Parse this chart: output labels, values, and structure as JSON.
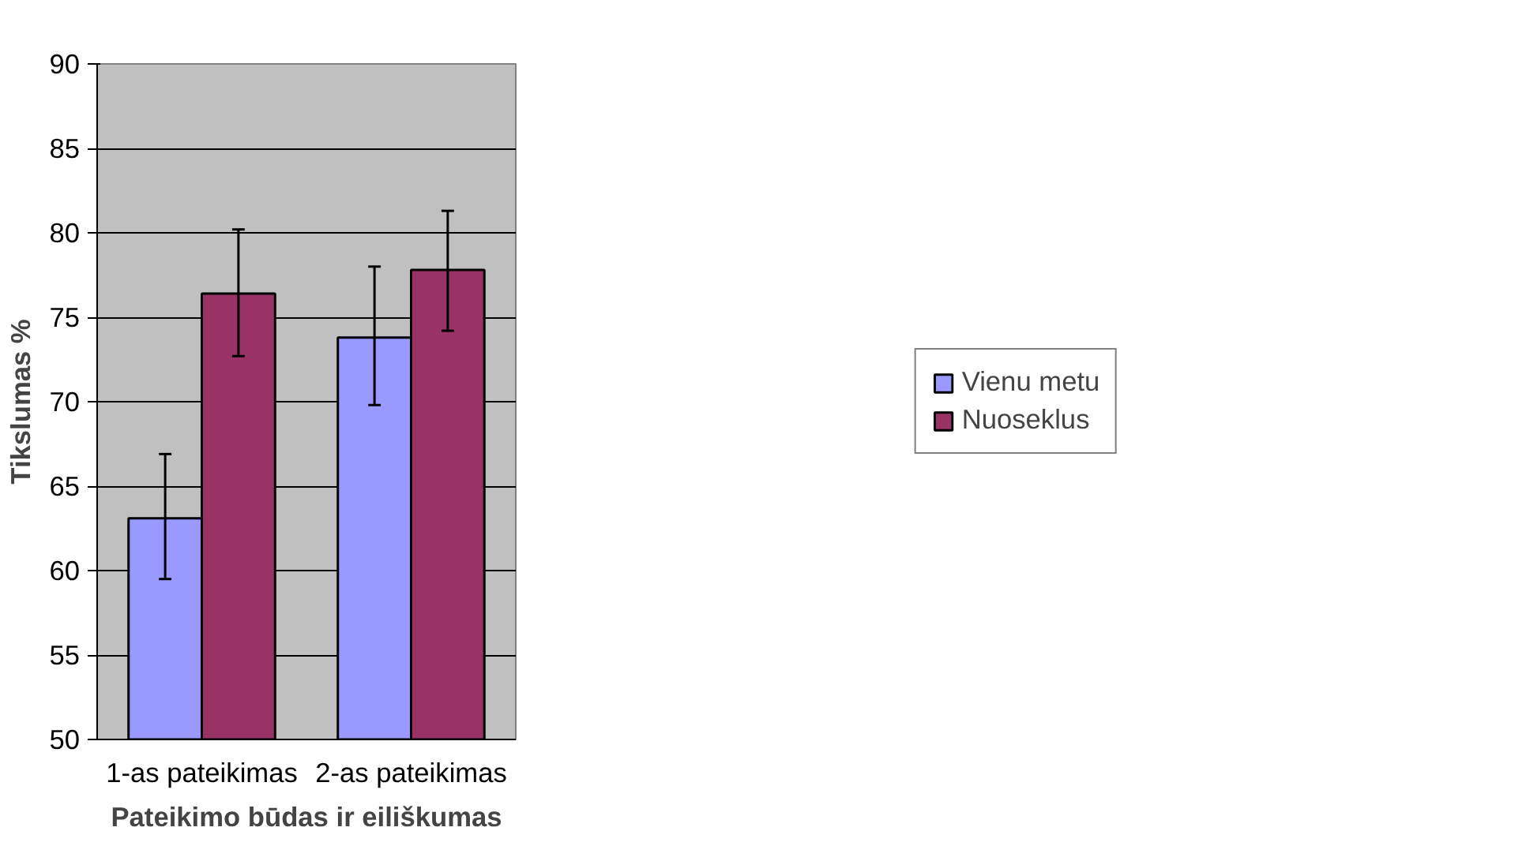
{
  "chart_data": {
    "type": "bar",
    "xlabel": "Pateikimo būdas ir eiliškumas",
    "ylabel": "Tikslumas %",
    "categories": [
      "1-as pateikimas",
      "2-as pateikimas"
    ],
    "series": [
      {
        "name": "Vienu metu",
        "color": "#9999ff",
        "values": [
          63.1,
          73.8
        ],
        "errors": [
          [
            59.5,
            66.9
          ],
          [
            69.8,
            78.0
          ]
        ]
      },
      {
        "name": "Nuoseklus",
        "color": "#993366",
        "values": [
          76.4,
          77.8
        ],
        "errors": [
          [
            72.7,
            80.2
          ],
          [
            74.2,
            81.3
          ]
        ]
      }
    ],
    "ylim": [
      50,
      90
    ],
    "yticks": [
      50,
      55,
      60,
      65,
      70,
      75,
      80,
      85,
      90
    ],
    "grid": "y",
    "legend": "right"
  }
}
